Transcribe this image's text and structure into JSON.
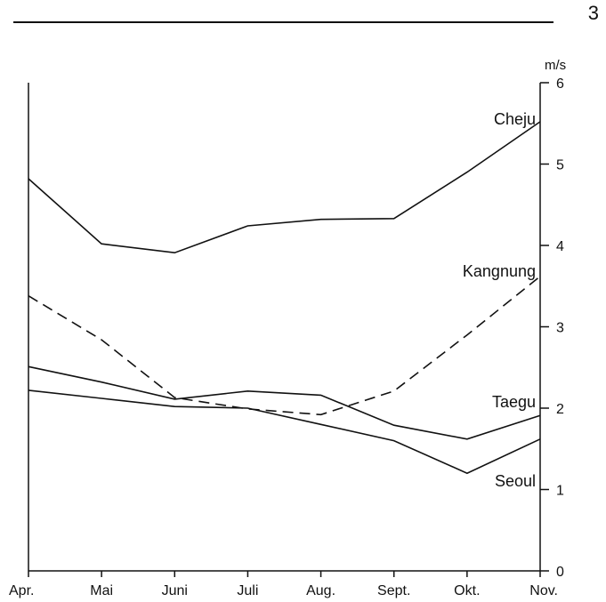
{
  "page_number": "3",
  "chart_data": {
    "type": "line",
    "title": "",
    "xlabel": "",
    "ylabel": "",
    "y_unit": "m/s",
    "categories": [
      "Apr.",
      "Mai",
      "Juni",
      "Juli",
      "Aug.",
      "Sept.",
      "Okt.",
      "Nov."
    ],
    "ylim": [
      0,
      6
    ],
    "yticks": [
      "0",
      "1",
      "2",
      "3",
      "4",
      "5",
      "6"
    ],
    "y_axis_side": "right",
    "grid": false,
    "legend": "inline labels at line ends",
    "series": [
      {
        "name": "Cheju",
        "values": [
          4.82,
          4.02,
          3.91,
          4.24,
          4.32,
          4.33,
          4.9,
          5.52
        ],
        "dashed": false
      },
      {
        "name": "Kangnung",
        "values": [
          3.38,
          2.84,
          2.13,
          1.99,
          1.92,
          2.21,
          2.9,
          3.62
        ],
        "dashed": true
      },
      {
        "name": "Taegu",
        "values": [
          2.51,
          2.32,
          2.11,
          2.21,
          2.16,
          1.79,
          1.62,
          1.91
        ],
        "dashed": false
      },
      {
        "name": "Seoul",
        "values": [
          2.22,
          2.12,
          2.02,
          2.0,
          1.8,
          1.6,
          1.2,
          1.62
        ],
        "dashed": false
      }
    ]
  }
}
